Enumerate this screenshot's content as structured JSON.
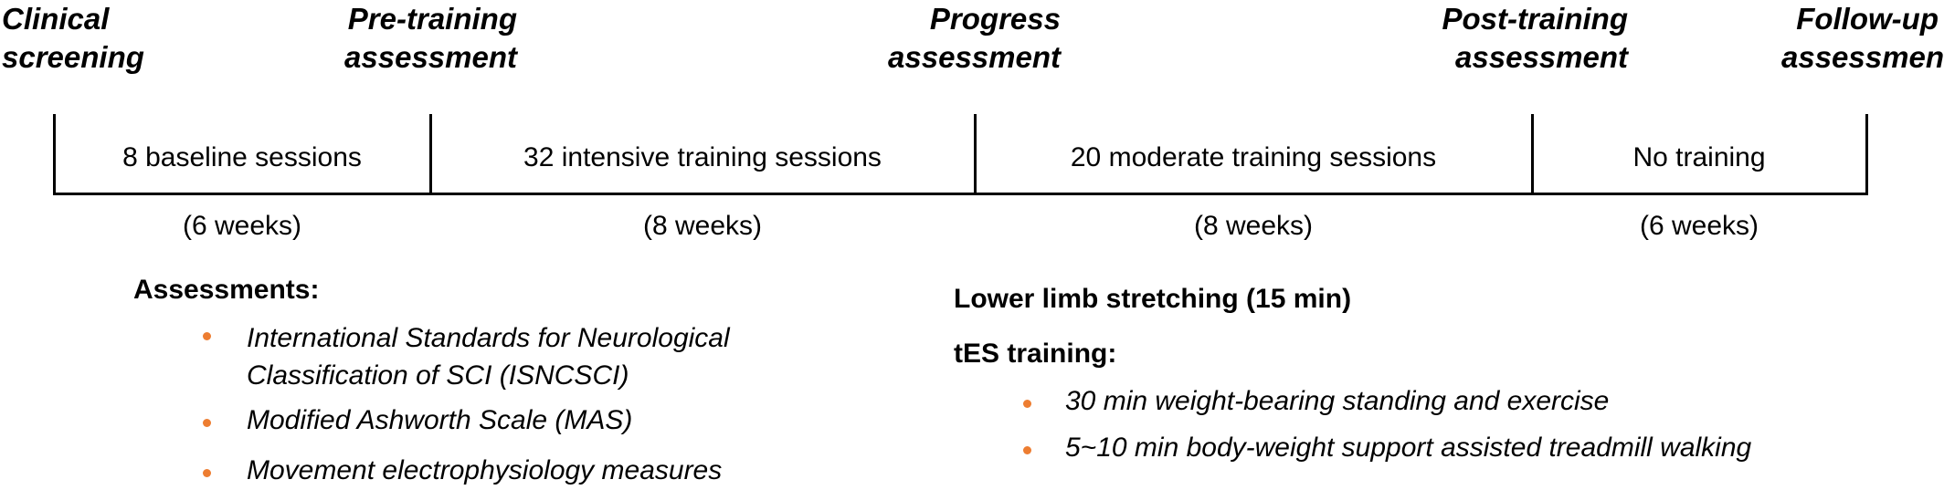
{
  "milestones": [
    {
      "line1": "Clinical",
      "line2": "screening"
    },
    {
      "line1": "Pre-training",
      "line2": "assessment"
    },
    {
      "line1": "Progress",
      "line2": "assessment"
    },
    {
      "line1": "Post-training",
      "line2": "assessment"
    },
    {
      "line1": "Follow-up",
      "line2": "assessment"
    }
  ],
  "phases": [
    {
      "label": "8 baseline sessions",
      "duration": "(6 weeks)"
    },
    {
      "label": "32 intensive training sessions",
      "duration": "(8 weeks)"
    },
    {
      "label": "20 moderate training sessions",
      "duration": "(8 weeks)"
    },
    {
      "label": "No training",
      "duration": "(6 weeks)"
    }
  ],
  "assessments": {
    "heading": "Assessments:",
    "items": [
      {
        "line1": "International Standards for Neurological",
        "line2": "Classification of SCI (ISNCSCI)"
      },
      {
        "line1": "Modified Ashworth Scale (MAS)"
      },
      {
        "line1": "Movement electrophysiology measures"
      }
    ]
  },
  "training": {
    "stretching_heading": "Lower limb stretching (15 min)",
    "tes_heading": "tES training:",
    "items": [
      "30 min weight-bearing standing and exercise",
      "5~10 min body-weight support assisted treadmill walking"
    ]
  },
  "colors": {
    "bullet": "#ED7D31",
    "line": "#000000"
  }
}
